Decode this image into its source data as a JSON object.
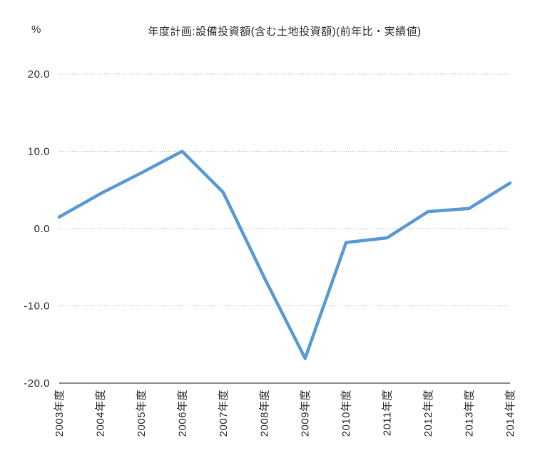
{
  "chart": {
    "unit_label": "%",
    "title": "年度計画:設備投資額(含む土地投資額)(前年比・実績値)"
  },
  "chart_data": {
    "type": "line",
    "title": "年度計画:設備投資額(含む土地投資額)(前年比・実績値)",
    "ylabel": "%",
    "xlabel": "",
    "categories": [
      "2003年度",
      "2004年度",
      "2005年度",
      "2006年度",
      "2007年度",
      "2008年度",
      "2009年度",
      "2010年度",
      "2011年度",
      "2012年度",
      "2013年度",
      "2014年度"
    ],
    "values": [
      1.5,
      4.5,
      7.2,
      10.0,
      4.7,
      -6.3,
      -16.8,
      -1.8,
      -1.2,
      2.2,
      2.6,
      5.9
    ],
    "ylim": [
      -20,
      20
    ],
    "yticks": [
      20.0,
      10.0,
      0.0,
      -10.0,
      -20.0
    ],
    "ytick_labels": [
      "20.0",
      "10.0",
      "0.0",
      "-10.0",
      "-20.0"
    ],
    "grid": "horizontal dotted, solid baseline at -20",
    "legend": "none",
    "line_color": "#5b9bd5",
    "text_color": "#333333",
    "gridline_color": "#b9b9b9",
    "axis_color": "#4a4a4a",
    "x_label_rotation": -90
  }
}
